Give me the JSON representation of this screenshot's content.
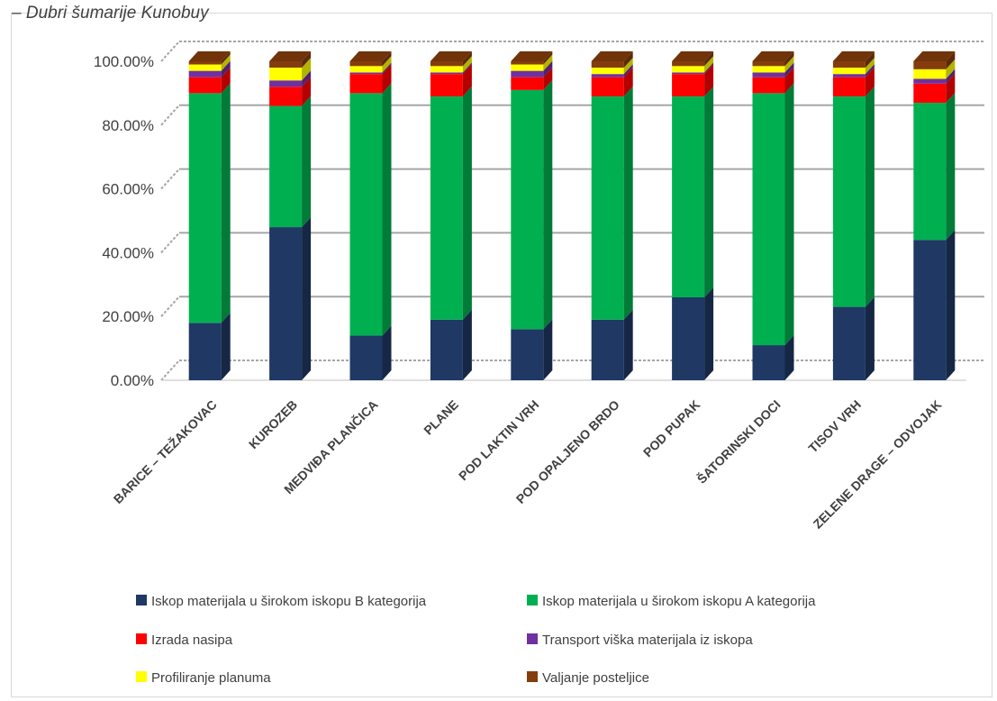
{
  "chart_data": {
    "type": "bar",
    "stacked": true,
    "percent": true,
    "three_d": true,
    "title": "– Dubri šumarije Kunobuy",
    "categories": [
      "BARICE – TEŽAKOVAC",
      "KUROZEB",
      "MEDVIĐA PLANČICA",
      "PLANE",
      "POD LAKTIN VRH",
      "POD OPALJENO BRDO",
      "POD PUPAK",
      "ŠATORINSKI DOCI",
      "TISOV VRH",
      "ZELENE DRAGE – ODVOJAK"
    ],
    "yticks": [
      "0.00%",
      "20.00%",
      "40.00%",
      "60.00%",
      "80.00%",
      "100.00%"
    ],
    "ylim": [
      0,
      100
    ],
    "grid": true,
    "legend_position": "bottom",
    "series": [
      {
        "name": "Iskop materijala u širokom iskopu B kategorija",
        "color": "#1F3864",
        "values": [
          18,
          48,
          14,
          19,
          16,
          19,
          26,
          11,
          23,
          44
        ]
      },
      {
        "name": "Iskop materijala u širokom iskopu A kategorija",
        "color": "#00B050",
        "values": [
          72,
          38,
          76,
          70,
          75,
          70,
          63,
          79,
          66,
          43
        ]
      },
      {
        "name": "Izrada nasipa",
        "color": "#FF0000",
        "values": [
          5,
          6,
          6,
          7,
          4,
          6,
          7,
          5,
          6,
          6
        ]
      },
      {
        "name": "Transport viška materijala iz iskopa",
        "color": "#7030A0",
        "values": [
          2,
          2,
          0.5,
          0.5,
          2,
          1,
          0.5,
          1.5,
          1,
          1.5
        ]
      },
      {
        "name": "Profiliranje planuma",
        "color": "#FFFF00",
        "values": [
          2,
          4,
          2,
          2,
          2,
          2,
          2,
          2,
          2,
          3
        ]
      },
      {
        "name": "Valjanje posteljice",
        "color": "#843C0C",
        "values": [
          1,
          2,
          1.5,
          1.5,
          1,
          2,
          1.5,
          1.5,
          2,
          2.5
        ]
      }
    ]
  }
}
